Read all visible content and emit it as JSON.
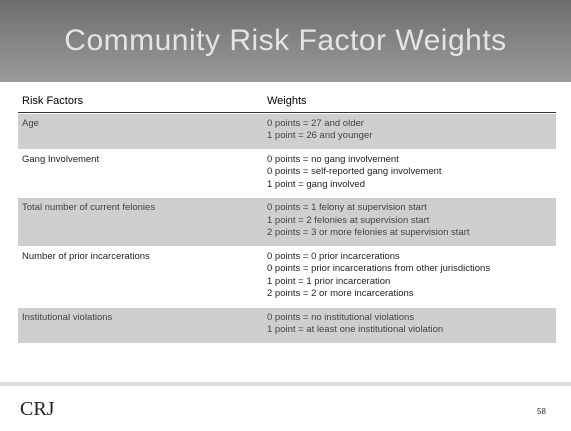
{
  "header": {
    "title": "Community Risk Factor Weights"
  },
  "table": {
    "columns": [
      "Risk Factors",
      "Weights"
    ],
    "rows": [
      {
        "factor": "Age",
        "weights": [
          "0 points = 27 and older",
          "1 point = 26 and younger"
        ]
      },
      {
        "factor": "Gang Involvement",
        "weights": [
          "0 points = no gang involvement",
          "0 points = self-reported gang involvement",
          "1 point = gang involved"
        ]
      },
      {
        "factor": "Total number of current felonies",
        "weights": [
          "0 points = 1 felony at supervision start",
          "1 point = 2 felonies at supervision start",
          "2 points = 3 or more felonies at supervision start"
        ]
      },
      {
        "factor": "Number of prior incarcerations",
        "weights": [
          "0 points = 0 prior incarcerations",
          "0 points = prior incarcerations from other jurisdictions",
          "1 point = 1 prior incarceration",
          "2 points = 2 or more incarcerations"
        ]
      },
      {
        "factor": "Institutional violations",
        "weights": [
          "0 points = no institutional violations",
          "1 point = at least one institutional violation"
        ]
      }
    ]
  },
  "footer": {
    "logo": "CRJ",
    "page": "58"
  }
}
